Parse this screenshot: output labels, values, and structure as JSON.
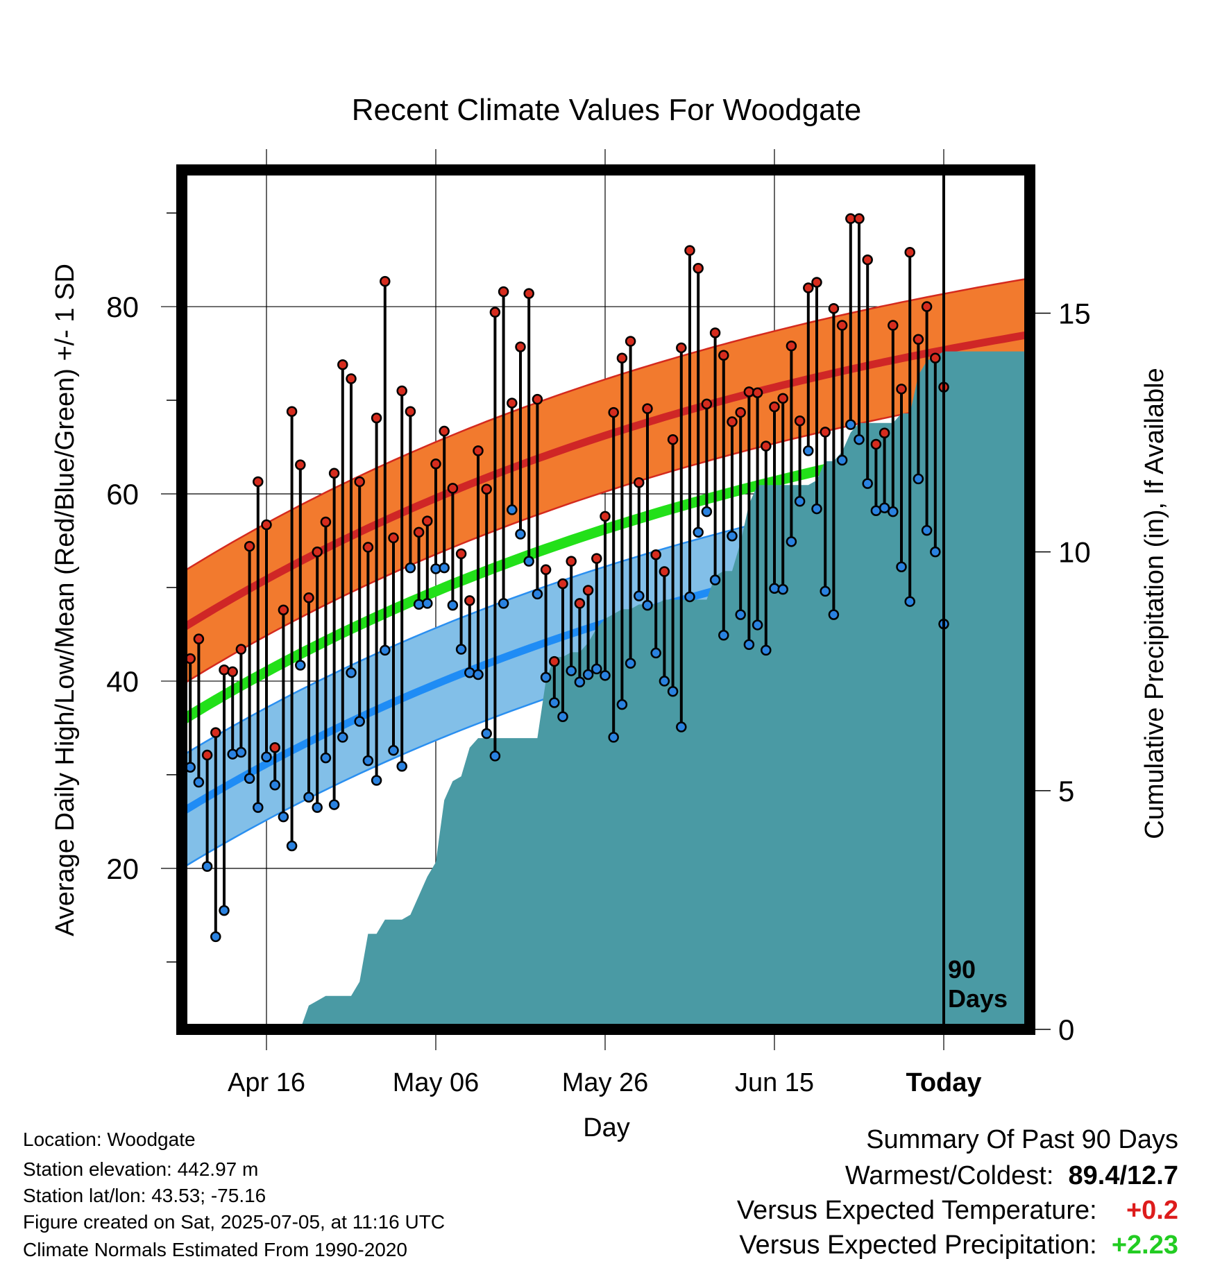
{
  "chart_data": {
    "type": "line",
    "title": "Recent Climate Values For Woodgate",
    "xlabel": "Day",
    "ylabel_left": "Average Daily High/Low/Mean (Red/Blue/Green) +/- 1 SD",
    "ylabel_right": "Cumulative Precipitation (in), If Available",
    "x_tick_labels": [
      "Apr 16",
      "May 06",
      "May 26",
      "Jun 15",
      "Today"
    ],
    "x_tick_days": [
      10,
      30,
      50,
      70,
      90
    ],
    "y_left_ticks": [
      20,
      40,
      60,
      80
    ],
    "y_left_range": [
      2.8,
      94.6
    ],
    "y_right_ticks": [
      0,
      5,
      10,
      15
    ],
    "y_right_range": [
      0,
      18
    ],
    "today_marker_label": "90 Days",
    "grid": true,
    "days_shown": 100,
    "normal_high": {
      "day0": 45.6,
      "day100": 77.0,
      "sd": 6.0
    },
    "normal_low": {
      "day0": 26.0,
      "day100": 56.8,
      "sd": 6.0
    },
    "normal_mean": {
      "day0": 35.8,
      "day100": 66.9
    },
    "series": [
      {
        "name": "High",
        "color": "#cc2222",
        "values": [
          42.4,
          44.5,
          32.1,
          34.5,
          41.2,
          41.0,
          43.4,
          54.4,
          61.3,
          56.7,
          32.9,
          47.6,
          68.8,
          63.1,
          48.9,
          53.8,
          57.0,
          62.2,
          73.8,
          72.3,
          61.3,
          54.3,
          68.1,
          82.7,
          55.3,
          71.0,
          68.8,
          55.9,
          57.1,
          63.2,
          66.7,
          60.6,
          53.6,
          48.6,
          64.6,
          60.5,
          79.4,
          81.6,
          69.7,
          75.7,
          81.4,
          70.1,
          51.9,
          42.1,
          50.4,
          52.8,
          48.3,
          49.7,
          53.1,
          57.6,
          68.7,
          74.5,
          76.3,
          61.2,
          69.1,
          53.5,
          51.7,
          65.8,
          75.6,
          86.0,
          84.1,
          69.6,
          77.2,
          74.8,
          67.7,
          68.7,
          70.9,
          70.8,
          65.1,
          69.3,
          70.2,
          75.8,
          67.8,
          82.0,
          82.6,
          66.6,
          79.8,
          78.0,
          89.4,
          89.4,
          85.0,
          65.3,
          66.5,
          78.0,
          71.2,
          85.8,
          76.5,
          80.0,
          74.5,
          71.4
        ]
      },
      {
        "name": "Low",
        "color": "#2a7fd4",
        "values": [
          30.8,
          29.2,
          20.2,
          12.7,
          15.5,
          32.2,
          32.4,
          29.6,
          26.5,
          31.9,
          28.9,
          25.5,
          22.4,
          41.7,
          27.6,
          26.5,
          31.8,
          26.8,
          34.0,
          40.9,
          35.7,
          31.5,
          29.4,
          43.3,
          32.6,
          30.9,
          52.1,
          48.2,
          48.3,
          52.0,
          52.1,
          48.1,
          43.4,
          40.9,
          40.7,
          34.4,
          32.0,
          48.3,
          58.3,
          55.7,
          52.8,
          49.3,
          40.4,
          37.7,
          36.2,
          41.1,
          39.9,
          40.7,
          41.3,
          40.6,
          34.0,
          37.5,
          41.9,
          49.1,
          48.1,
          43.0,
          40.0,
          38.9,
          35.1,
          49.0,
          55.9,
          58.1,
          50.8,
          44.9,
          55.5,
          47.1,
          43.9,
          46.0,
          43.3,
          49.9,
          49.8,
          54.9,
          59.2,
          64.6,
          58.4,
          49.6,
          47.1,
          63.6,
          67.4,
          65.8,
          61.1,
          58.2,
          58.5,
          58.1,
          52.2,
          48.5,
          61.6,
          56.1,
          53.8,
          46.1
        ]
      },
      {
        "name": "Cumulative Precipitation",
        "color": "#4a9aa4",
        "values": [
          0,
          0,
          0,
          0,
          0,
          0,
          0,
          0,
          0,
          0,
          0,
          0,
          0,
          0,
          0.5,
          0.6,
          0.7,
          0.7,
          0.7,
          0.7,
          1.0,
          2.0,
          2.0,
          2.3,
          2.3,
          2.3,
          2.4,
          2.8,
          3.2,
          3.5,
          4.8,
          5.2,
          5.3,
          5.9,
          6.1,
          6.1,
          6.1,
          6.1,
          6.1,
          6.1,
          6.1,
          6.1,
          7.3,
          7.8,
          7.8,
          7.9,
          7.9,
          8.1,
          8.4,
          8.6,
          8.7,
          8.8,
          8.8,
          8.9,
          8.9,
          8.9,
          9.0,
          9.0,
          9.0,
          9.0,
          9.0,
          9.0,
          9.5,
          9.6,
          9.6,
          10.2,
          11.0,
          11.4,
          11.4,
          11.4,
          11.4,
          11.4,
          11.4,
          11.4,
          11.5,
          11.9,
          11.9,
          12.1,
          12.5,
          12.7,
          12.7,
          12.7,
          12.7,
          12.7,
          12.9,
          12.9,
          13.7,
          14.0,
          14.1,
          14.2
        ]
      }
    ]
  },
  "info": {
    "location": "Location: Woodgate",
    "elevation": "Station elevation: 442.97 m",
    "latlon": "Station lat/lon: 43.53; -75.16",
    "created": "Figure created on Sat, 2025-07-05, at 11:16 UTC",
    "normals": "Climate Normals Estimated From 1990-2020"
  },
  "summary": {
    "title": "Summary Of Past 90 Days",
    "warm_cold_label": "Warmest/Coldest:",
    "warm_cold_value": "89.4/12.7",
    "temp_label": "Versus Expected Temperature:",
    "temp_value": "+0.2",
    "precip_label": "Versus Expected Precipitation:",
    "precip_value": "+2.23"
  }
}
